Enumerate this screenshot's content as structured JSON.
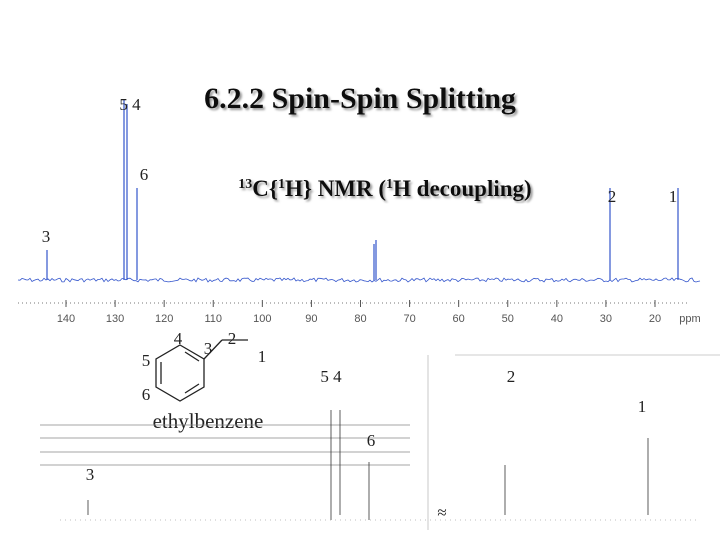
{
  "title": "6.2.2 Spin-Spin Splitting",
  "subtitle": {
    "a": "13",
    "b": "C{",
    "c": "1",
    "d": "H} NMR (",
    "e": "1",
    "f": "H decoupling)"
  },
  "spectrum": {
    "peak_labels": {
      "c54": "5 4",
      "c6": "6",
      "c3": "3",
      "c2": "2",
      "c1": "1"
    },
    "axis_ticks": [
      140,
      130,
      120,
      110,
      100,
      90,
      80,
      70,
      60,
      50,
      40,
      30,
      20
    ],
    "axis_unit": "ppm"
  },
  "structure": {
    "atoms": [
      "4",
      "3",
      "2",
      "1",
      "5",
      "6"
    ],
    "name": "ethylbenzene"
  },
  "lower_spectrum": {
    "labels": [
      "5 4",
      "2",
      "1",
      "6",
      "3"
    ],
    "break": "≈"
  }
}
